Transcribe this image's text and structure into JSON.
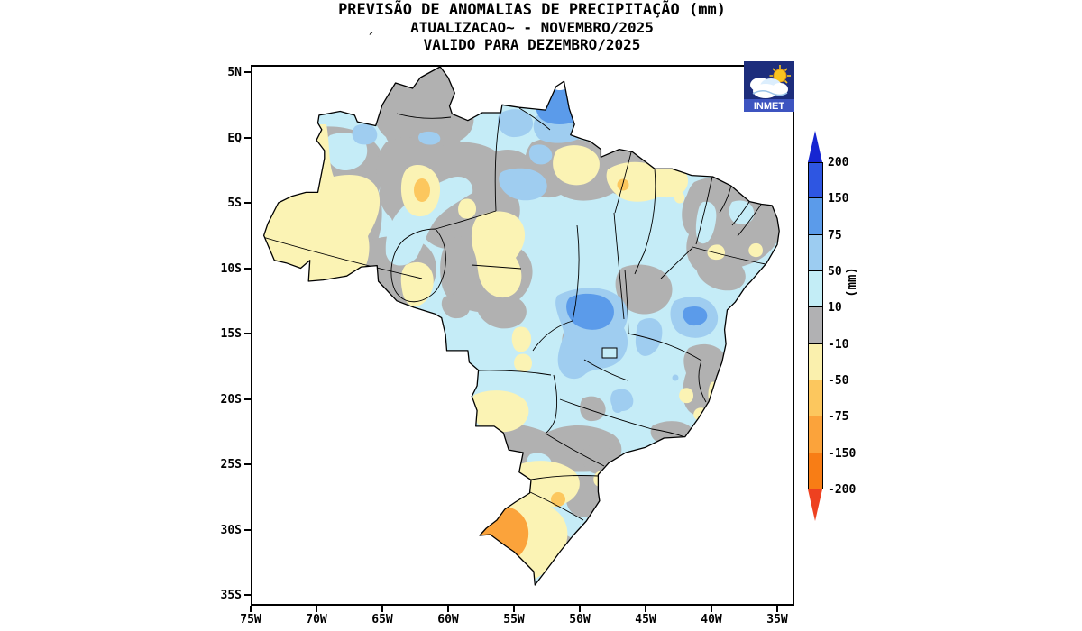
{
  "title": {
    "line1": "PREVISÃO DE ANOMALIAS DE PRECIPITAÇÃO (mm)",
    "line2": "ATUALIZACAO~ - NOVEMBRO/2025",
    "line3": "VALIDO PARA DEZEMBRO/2025",
    "stray_mark": "´"
  },
  "logo": {
    "text": "INMET"
  },
  "map_axes": {
    "lat_labels": [
      "5N",
      "EQ",
      "5S",
      "10S",
      "15S",
      "20S",
      "25S",
      "30S",
      "35S"
    ],
    "lon_labels": [
      "75W",
      "70W",
      "65W",
      "60W",
      "55W",
      "50W",
      "45W",
      "40W",
      "35W"
    ]
  },
  "colorbar": {
    "unit_label": "(mm)",
    "boundary_labels": [
      "200",
      "150",
      "75",
      "50",
      "10",
      "-10",
      "-50",
      "-75",
      "-150",
      "-200"
    ],
    "segment_colors": [
      "#2e56e2",
      "#5b9bea",
      "#9cccf1",
      "#c3edf6",
      "#b1b1b3",
      "#faf0ad",
      "#fcc75e",
      "#fba33b",
      "#f87d15"
    ],
    "arrow_top_color": "#1726d2",
    "arrow_bottom_color": "#ee4120"
  },
  "palette": {
    "cyan": "#c5ecf7",
    "blue": "#9fcdf0",
    "dblue": "#5b9bea",
    "gray": "#b1b1b1",
    "yellow": "#fbf3b4",
    "amber": "#fcc75e",
    "orange": "#fba33b"
  },
  "anomaly_regions": [
    {
      "area": "Roraima / far north",
      "anomaly_mm": "-10 to 10"
    },
    {
      "area": "Amapá",
      "anomaly_mm": "75 to 150 core in 50 to 75 band"
    },
    {
      "area": "Western Amazonas and Acre",
      "anomaly_mm": "-50 to -10"
    },
    {
      "area": "Central Amazonas oval",
      "anomaly_mm": "-75 to -50 core in -50 to -10"
    },
    {
      "area": "Central Brazil gray network",
      "anomaly_mm": "-10 to 10"
    },
    {
      "area": "Most of east / northeast interior",
      "anomaly_mm": "10 to 50"
    },
    {
      "area": "Mato Grosso / Tocantins border",
      "anomaly_mm": "75 to 150 core in 50 to 75"
    },
    {
      "area": "East northeast coastal strip",
      "anomaly_mm": "-10 to 10"
    },
    {
      "area": "Northern Maranhão band",
      "anomaly_mm": "-50 to -10 with -75 to -50 spot"
    },
    {
      "area": "Paraná / Santa Catarina",
      "anomaly_mm": "-50 to -10 with -75 to -50 spot"
    },
    {
      "area": "Western Rio Grande do Sul",
      "anomaly_mm": "-150 to -75"
    }
  ]
}
